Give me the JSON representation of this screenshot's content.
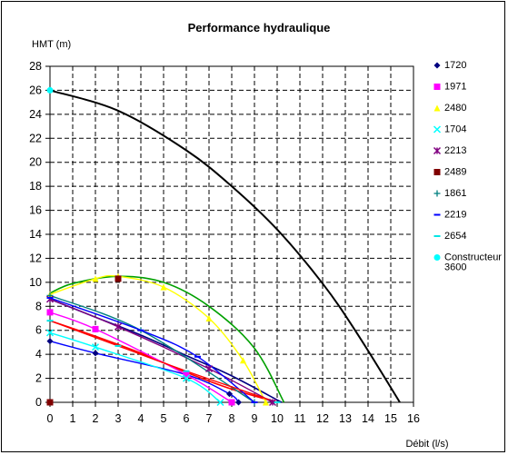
{
  "chart_data": {
    "type": "line",
    "title": "Performance hydraulique",
    "xlabel": "Débit (l/s)",
    "ylabel": "HMT (m)",
    "xlim": [
      0,
      16
    ],
    "ylim": [
      0,
      28
    ],
    "xticks": [
      "0",
      "1",
      "2",
      "3",
      "4",
      "5",
      "6",
      "7",
      "8",
      "9",
      "10",
      "11",
      "12",
      "13",
      "14",
      "15",
      "16"
    ],
    "yticks": [
      "0",
      "2",
      "4",
      "6",
      "8",
      "10",
      "12",
      "14",
      "16",
      "18",
      "20",
      "22",
      "24",
      "26",
      "28"
    ],
    "grid": "dashed",
    "legend_position": "right",
    "series": [
      {
        "name": "1720",
        "marker": "diamond",
        "color": "#000080",
        "line_color": "#0000ff",
        "points": [
          [
            0,
            5.1
          ],
          [
            2,
            4.1
          ],
          [
            6,
            2.3
          ],
          [
            7.9,
            0.7
          ],
          [
            8.3,
            0
          ]
        ]
      },
      {
        "name": "1971",
        "marker": "square",
        "color": "#ff00ff",
        "line_color": "#ff00ff",
        "points": [
          [
            0,
            7.5
          ],
          [
            2,
            6.1
          ],
          [
            6,
            2.3
          ],
          [
            8,
            0
          ]
        ]
      },
      {
        "name": "2480",
        "marker": "triangle",
        "color": "#ffff00",
        "line_color": "#ffff00",
        "points": [
          [
            0,
            9
          ],
          [
            2,
            10.3
          ],
          [
            3,
            10.5
          ],
          [
            5,
            9.6
          ],
          [
            7,
            7
          ],
          [
            8.5,
            3.5
          ],
          [
            9.5,
            0
          ]
        ]
      },
      {
        "name": "1704",
        "marker": "x",
        "color": "#00ffff",
        "line_color": "#00ffff",
        "points": [
          [
            0,
            5.8
          ],
          [
            2,
            4.6
          ],
          [
            6,
            2.0
          ],
          [
            7.5,
            0
          ]
        ]
      },
      {
        "name": "2213",
        "marker": "star",
        "color": "#800080",
        "line_color": "#800080",
        "points": [
          [
            0,
            8.6
          ],
          [
            3,
            6.3
          ],
          [
            7,
            2.8
          ],
          [
            9.8,
            0
          ]
        ]
      },
      {
        "name": "2489",
        "marker": "square",
        "color": "#800000",
        "line_color": "#800000",
        "points": [
          [
            0,
            0
          ],
          [
            3,
            10.3
          ]
        ]
      },
      {
        "name": "1861",
        "marker": "plus",
        "color": "#008080",
        "line_color": "#008080",
        "points": [
          [
            0,
            8.9
          ],
          [
            4,
            6.0
          ],
          [
            9,
            0
          ]
        ]
      },
      {
        "name": "2219",
        "marker": "dash",
        "color": "#0000ff",
        "line_color": "#0000ff",
        "points": [
          [
            0,
            8.7
          ],
          [
            4,
            6.0
          ],
          [
            6.5,
            3.8
          ],
          [
            9,
            0
          ]
        ]
      },
      {
        "name": "2654",
        "marker": "dash",
        "color": "#00e5e5",
        "line_color": "#ff0000",
        "points": [
          [
            0,
            6.8
          ],
          [
            3,
            4.7
          ],
          [
            6,
            2.6
          ],
          [
            10,
            0
          ]
        ]
      },
      {
        "name": "Constructeur 3600",
        "marker": "circle",
        "color": "#00ffff",
        "line_color": "#000000",
        "points": [
          [
            0,
            26
          ],
          [
            3,
            24.3
          ],
          [
            6,
            21
          ],
          [
            8,
            18
          ],
          [
            10,
            14.4
          ],
          [
            12,
            9.9
          ],
          [
            13.5,
            5.8
          ],
          [
            15.4,
            0
          ]
        ]
      }
    ],
    "extra_curves": [
      {
        "color": "#00a000",
        "points": [
          [
            0,
            9.1
          ],
          [
            1,
            9.9
          ],
          [
            3,
            10.5
          ],
          [
            5,
            10.0
          ],
          [
            7,
            8.0
          ],
          [
            9,
            4.5
          ],
          [
            10.3,
            0
          ]
        ]
      },
      {
        "color": "#ff0000",
        "points": [
          [
            0,
            6.8
          ],
          [
            2,
            5.5
          ],
          [
            4,
            4.1
          ],
          [
            6,
            2.5
          ],
          [
            8,
            1.1
          ],
          [
            10,
            0
          ]
        ]
      },
      {
        "color": "#000080",
        "points": [
          [
            0,
            8.6
          ],
          [
            2,
            7.1
          ],
          [
            4,
            5.6
          ],
          [
            6,
            3.9
          ],
          [
            8,
            2.2
          ],
          [
            10.2,
            0
          ]
        ]
      }
    ]
  }
}
